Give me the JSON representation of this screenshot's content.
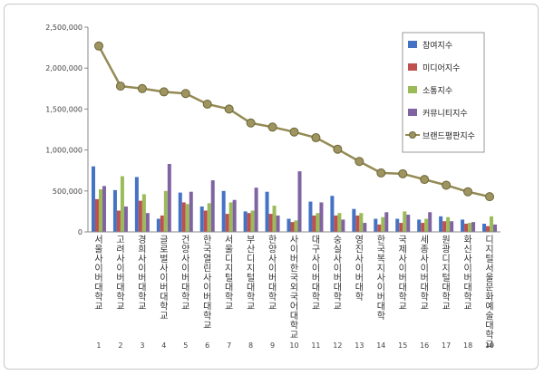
{
  "chart_data": {
    "type": "bar",
    "categories": [
      "서울사이버대학교",
      "고려사이버대학교",
      "경희사이버대학교",
      "글로벌사이버대학교",
      "건양사이버대학교",
      "한국열린사이버대학교",
      "서울디지털대학교",
      "부산디지털대학교",
      "한양사이버대학교",
      "사이버한국외국어대학교",
      "대구사이버대학교",
      "숭실사이버대학교",
      "영진사이버대학",
      "한국복지사이버대학",
      "국제사이버대학교",
      "세종사이버대학교",
      "원광디지털대학교",
      "화신사이버대학교",
      "디지털서울문화예술대학교"
    ],
    "ranks": [
      "1",
      "2",
      "3",
      "4",
      "5",
      "6",
      "7",
      "8",
      "9",
      "10",
      "11",
      "12",
      "13",
      "14",
      "15",
      "16",
      "17",
      "18",
      "19"
    ],
    "ylim": [
      0,
      2500000
    ],
    "yticks": [
      "0",
      "500,000",
      "1,000,000",
      "1,500,000",
      "2,000,000",
      "2,500,000"
    ],
    "series": [
      {
        "name": "참여지수",
        "color": "#4472c4",
        "kind": "bar",
        "values": [
          800000,
          510000,
          670000,
          160000,
          480000,
          310000,
          500000,
          250000,
          490000,
          160000,
          370000,
          440000,
          280000,
          160000,
          160000,
          150000,
          190000,
          150000,
          100000
        ]
      },
      {
        "name": "미디어지수",
        "color": "#c0504d",
        "kind": "bar",
        "values": [
          400000,
          260000,
          380000,
          200000,
          360000,
          260000,
          220000,
          230000,
          220000,
          120000,
          200000,
          200000,
          200000,
          90000,
          110000,
          110000,
          130000,
          100000,
          70000
        ]
      },
      {
        "name": "소통지수",
        "color": "#9bbb59",
        "kind": "bar",
        "values": [
          520000,
          680000,
          460000,
          500000,
          340000,
          350000,
          360000,
          260000,
          320000,
          140000,
          230000,
          230000,
          230000,
          180000,
          250000,
          160000,
          180000,
          110000,
          190000
        ]
      },
      {
        "name": "커뮤니티지수",
        "color": "#8064a2",
        "kind": "bar",
        "values": [
          560000,
          310000,
          230000,
          830000,
          490000,
          630000,
          390000,
          540000,
          200000,
          740000,
          360000,
          150000,
          110000,
          240000,
          210000,
          240000,
          130000,
          120000,
          90000
        ]
      },
      {
        "name": "브랜드평판지수",
        "color": "#948a54",
        "kind": "line",
        "values": [
          2270000,
          1780000,
          1750000,
          1710000,
          1690000,
          1560000,
          1500000,
          1330000,
          1280000,
          1220000,
          1150000,
          1010000,
          860000,
          720000,
          710000,
          640000,
          570000,
          490000,
          430000
        ]
      }
    ],
    "legend": "right-inside",
    "grid": false
  }
}
